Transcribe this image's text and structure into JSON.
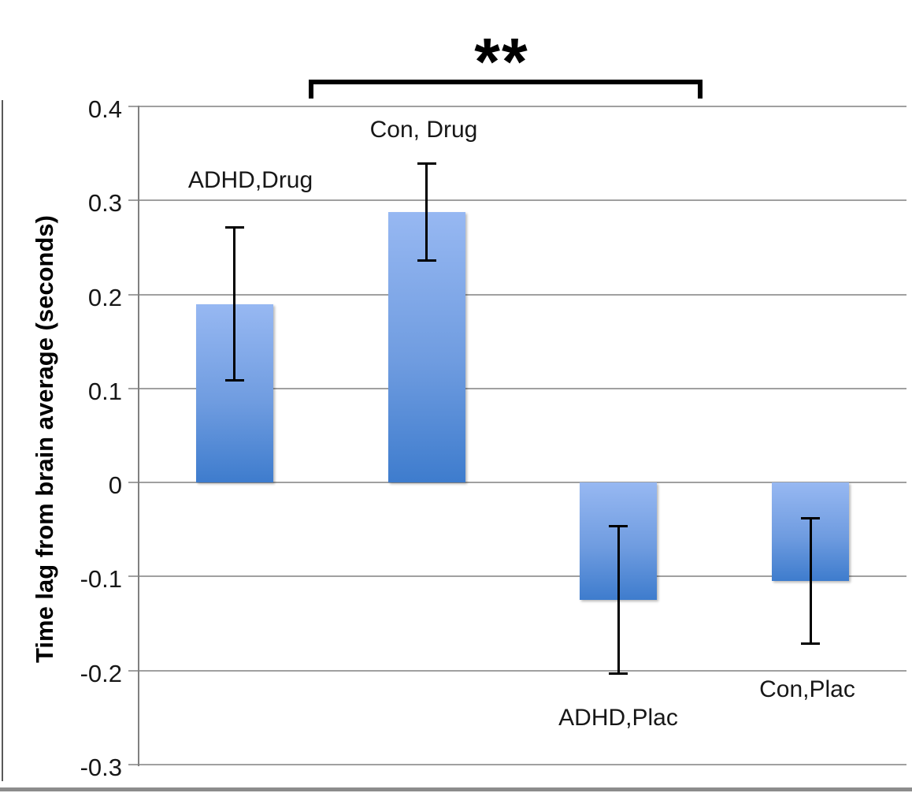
{
  "chart_data": {
    "type": "bar",
    "title": "",
    "xlabel": "",
    "ylabel": "Time lag from brain average (seconds)",
    "categories": [
      "ADHD,Drug",
      "Con, Drug",
      "ADHD,Plac",
      "Con,Plac"
    ],
    "values": [
      0.19,
      0.288,
      -0.125,
      -0.105
    ],
    "errors": [
      0.082,
      0.052,
      0.079,
      0.067
    ],
    "ylim": [
      -0.3,
      0.4
    ],
    "ytick_values": [
      0.4,
      0.3,
      0.2,
      0.1,
      0,
      -0.1,
      -0.2,
      -0.3
    ],
    "ytick_labels": [
      "0.4",
      "0.3",
      "0.2",
      "0.1",
      "0",
      "-0.1",
      "-0.2",
      "-0.3"
    ],
    "grid": true,
    "legend": false,
    "annotation": {
      "type": "significance-bracket",
      "text": "**",
      "from_category": "Con, Drug",
      "to_category": "Con,Plac"
    },
    "colors": {
      "bar_gradient_top": "#97b8f2",
      "bar_gradient_bottom": "#3e7ccd",
      "gridline": "#a0a0a0",
      "axis_line": "#808080",
      "error_bar": "#000000",
      "text_color": "#171717",
      "frame_line": "#595959",
      "bottom_bar": "#8c8c8c"
    }
  }
}
